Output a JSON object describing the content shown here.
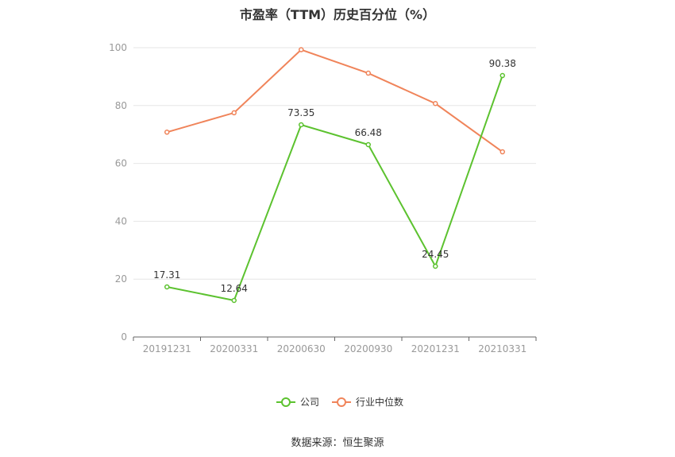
{
  "title": "市盈率（TTM）历史百分位（%）",
  "source": "数据来源：恒生聚源",
  "chart_data": {
    "type": "line",
    "categories": [
      "20191231",
      "20200331",
      "20200630",
      "20200930",
      "20201231",
      "20210331"
    ],
    "ylim": [
      0,
      100
    ],
    "yticks": [
      0,
      20,
      40,
      60,
      80,
      100
    ],
    "grid": true,
    "legend_position": "bottom",
    "series": [
      {
        "name": "公司",
        "color": "#5cc22f",
        "values": [
          17.31,
          12.64,
          73.35,
          66.48,
          24.45,
          90.38
        ],
        "labels": [
          "17.31",
          "12.64",
          "73.35",
          "66.48",
          "24.45",
          "90.38"
        ]
      },
      {
        "name": "行业中位数",
        "color": "#f0845a",
        "values": [
          70.8,
          77.5,
          99.3,
          91.2,
          80.7,
          64.0
        ]
      }
    ]
  }
}
